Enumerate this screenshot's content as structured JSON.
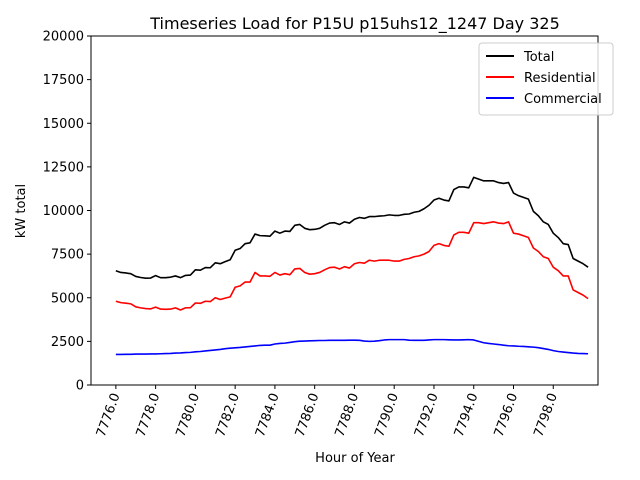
{
  "chart_data": {
    "type": "line",
    "title": "Timeseries Load for P15U p15uhs12_1247  Day 325",
    "xlabel": "Hour of Year",
    "ylabel": "kW total",
    "xlim": [
      7774.75,
      7800.25
    ],
    "ylim": [
      0,
      20000
    ],
    "xticks": [
      7776,
      7778,
      7780,
      7782,
      7784,
      7786,
      7788,
      7790,
      7792,
      7794,
      7796,
      7798
    ],
    "xtick_labels": [
      "7776.0",
      "7778.0",
      "7780.0",
      "7782.0",
      "7784.0",
      "7786.0",
      "7788.0",
      "7790.0",
      "7792.0",
      "7794.0",
      "7796.0",
      "7798.0"
    ],
    "yticks": [
      0,
      2500,
      5000,
      7500,
      10000,
      12500,
      15000,
      17500,
      20000
    ],
    "ytick_labels": [
      "0",
      "2500",
      "5000",
      "7500",
      "10000",
      "12500",
      "15000",
      "17500",
      "20000"
    ],
    "legend_position": "top-right",
    "grid": false,
    "x_start": 7776,
    "x_step": 0.25,
    "series": [
      {
        "name": "Total",
        "color": "#000000",
        "values": [
          6550,
          6450,
          6420,
          6380,
          6220,
          6160,
          6120,
          6130,
          6270,
          6150,
          6150,
          6180,
          6250,
          6150,
          6280,
          6300,
          6600,
          6580,
          6730,
          6720,
          7000,
          6950,
          7070,
          7180,
          7720,
          7820,
          8100,
          8150,
          8650,
          8560,
          8550,
          8530,
          8820,
          8700,
          8820,
          8800,
          9150,
          9200,
          8980,
          8900,
          8920,
          8980,
          9150,
          9280,
          9300,
          9200,
          9350,
          9280,
          9500,
          9600,
          9550,
          9650,
          9650,
          9680,
          9700,
          9750,
          9720,
          9720,
          9780,
          9800,
          9900,
          9950,
          10100,
          10300,
          10600,
          10700,
          10600,
          10550,
          11200,
          11350,
          11350,
          11300,
          11900,
          11800,
          11700,
          11700,
          11700,
          11600,
          11550,
          11600,
          11000,
          10850,
          10750,
          10650,
          9950,
          9700,
          9350,
          9200,
          8700,
          8450,
          8100,
          8050,
          7250,
          7100,
          6950,
          6750
        ]
      },
      {
        "name": "Residential",
        "color": "#ff0000",
        "values": [
          4800,
          4720,
          4690,
          4650,
          4480,
          4420,
          4380,
          4360,
          4460,
          4350,
          4340,
          4350,
          4420,
          4300,
          4420,
          4430,
          4700,
          4680,
          4800,
          4780,
          5000,
          4900,
          4980,
          5050,
          5600,
          5680,
          5900,
          5900,
          6450,
          6250,
          6250,
          6230,
          6450,
          6300,
          6380,
          6320,
          6650,
          6680,
          6450,
          6350,
          6380,
          6450,
          6600,
          6730,
          6750,
          6650,
          6780,
          6700,
          6950,
          7020,
          6980,
          7150,
          7100,
          7150,
          7150,
          7150,
          7100,
          7100,
          7200,
          7250,
          7350,
          7400,
          7500,
          7650,
          8000,
          8100,
          8000,
          7950,
          8600,
          8750,
          8750,
          8700,
          9300,
          9300,
          9250,
          9300,
          9350,
          9280,
          9250,
          9350,
          8700,
          8650,
          8550,
          8450,
          7850,
          7650,
          7350,
          7250,
          6750,
          6550,
          6250,
          6250,
          5450,
          5300,
          5150,
          4950
        ]
      },
      {
        "name": "Commercial",
        "color": "#0000ff",
        "values": [
          1750,
          1750,
          1760,
          1760,
          1770,
          1770,
          1770,
          1780,
          1780,
          1790,
          1800,
          1810,
          1830,
          1840,
          1860,
          1870,
          1900,
          1920,
          1950,
          1980,
          2010,
          2040,
          2080,
          2110,
          2130,
          2150,
          2180,
          2210,
          2240,
          2270,
          2280,
          2280,
          2350,
          2380,
          2400,
          2440,
          2480,
          2510,
          2520,
          2530,
          2540,
          2550,
          2550,
          2560,
          2560,
          2560,
          2560,
          2570,
          2570,
          2560,
          2520,
          2500,
          2510,
          2540,
          2580,
          2600,
          2600,
          2600,
          2600,
          2570,
          2560,
          2560,
          2560,
          2580,
          2600,
          2600,
          2600,
          2590,
          2580,
          2580,
          2590,
          2600,
          2580,
          2500,
          2420,
          2380,
          2350,
          2320,
          2280,
          2250,
          2240,
          2220,
          2210,
          2190,
          2170,
          2140,
          2090,
          2040,
          1970,
          1920,
          1890,
          1860,
          1830,
          1810,
          1800,
          1790
        ]
      }
    ]
  }
}
